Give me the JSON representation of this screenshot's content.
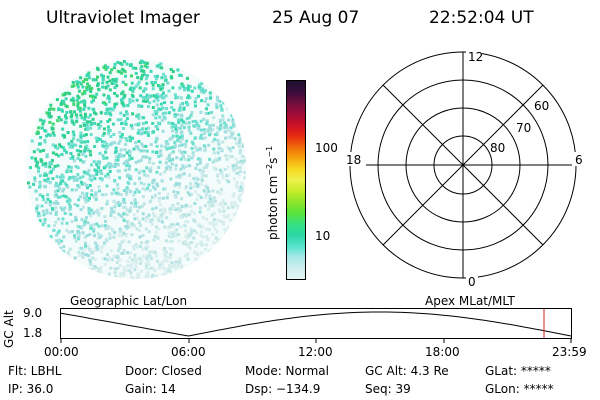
{
  "header": {
    "instrument": "Ultraviolet Imager",
    "date": "25 Aug 07",
    "time": "22:52:04 UT"
  },
  "colorbar": {
    "unit_label": "photon cm",
    "unit_exp1": "−2",
    "unit_s": "s",
    "unit_exp2": "−1",
    "ticks": [
      "100",
      "10"
    ],
    "colors": [
      "#e6f5f5",
      "#cfeeee",
      "#a6e8e8",
      "#55e3cc",
      "#2bd7a4",
      "#36e080",
      "#5ae23a",
      "#8ee42a",
      "#c6ec2a",
      "#eef04a",
      "#f8d820",
      "#f5a30c",
      "#ef6a08",
      "#e62b10",
      "#cc1028",
      "#a00c38",
      "#700f3f",
      "#3a0d3a",
      "#1c1030"
    ]
  },
  "polar_plot": {
    "mlt_labels": {
      "top": "12",
      "left": "18",
      "right": "6",
      "bottom": "0"
    },
    "lat_labels": [
      "60",
      "70",
      "80"
    ]
  },
  "timeline": {
    "y_axis_label": "GC Alt",
    "y_ticks": [
      "9.0",
      "1.8"
    ],
    "left_title": "Geographic Lat/Lon",
    "right_title": "Apex MLat/MLT",
    "x_ticks": [
      "00:00",
      "06:00",
      "12:00",
      "18:00",
      "23:59"
    ],
    "marker_color": "#cc2222"
  },
  "status": {
    "flt": "Flt: LBHL",
    "door": "Door: Closed",
    "mode": "Mode: Normal",
    "gc_alt": "GC Alt: 4.3 Re",
    "glat": "GLat: *****",
    "ip": "IP: 36.0",
    "gain": "Gain: 14",
    "dsp": "Dsp: −134.9",
    "seq": "Seq: 39",
    "glon": "GLon: *****"
  }
}
